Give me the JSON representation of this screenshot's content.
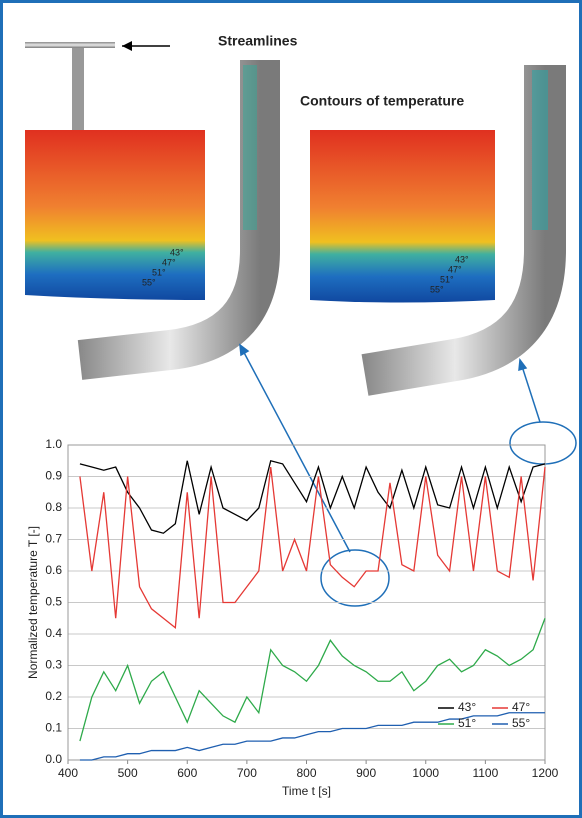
{
  "chart_data": {
    "type": "line",
    "x": [
      420,
      440,
      460,
      480,
      500,
      520,
      540,
      560,
      580,
      600,
      620,
      640,
      660,
      680,
      700,
      720,
      740,
      760,
      780,
      800,
      820,
      840,
      860,
      880,
      900,
      920,
      940,
      960,
      980,
      1000,
      1020,
      1040,
      1060,
      1080,
      1100,
      1120,
      1140,
      1160,
      1180,
      1200
    ],
    "series": [
      {
        "name": "43°",
        "color": "#000000",
        "values": [
          0.94,
          0.93,
          0.92,
          0.93,
          0.85,
          0.8,
          0.73,
          0.72,
          0.75,
          0.95,
          0.78,
          0.93,
          0.8,
          0.78,
          0.76,
          0.8,
          0.95,
          0.94,
          0.88,
          0.82,
          0.93,
          0.8,
          0.9,
          0.8,
          0.93,
          0.85,
          0.8,
          0.92,
          0.8,
          0.93,
          0.81,
          0.8,
          0.93,
          0.8,
          0.93,
          0.8,
          0.93,
          0.82,
          0.93,
          0.94
        ]
      },
      {
        "name": "47°",
        "color": "#e53935",
        "values": [
          0.9,
          0.6,
          0.85,
          0.45,
          0.9,
          0.55,
          0.48,
          0.45,
          0.42,
          0.85,
          0.45,
          0.9,
          0.5,
          0.5,
          0.55,
          0.6,
          0.93,
          0.6,
          0.7,
          0.6,
          0.9,
          0.62,
          0.58,
          0.55,
          0.6,
          0.6,
          0.88,
          0.62,
          0.6,
          0.9,
          0.65,
          0.6,
          0.9,
          0.6,
          0.9,
          0.6,
          0.58,
          0.9,
          0.57,
          0.93
        ]
      },
      {
        "name": "51°",
        "color": "#2eaa4a",
        "values": [
          0.06,
          0.2,
          0.28,
          0.22,
          0.3,
          0.18,
          0.25,
          0.28,
          0.2,
          0.12,
          0.22,
          0.18,
          0.14,
          0.12,
          0.2,
          0.15,
          0.35,
          0.3,
          0.28,
          0.25,
          0.3,
          0.38,
          0.33,
          0.3,
          0.28,
          0.25,
          0.25,
          0.28,
          0.22,
          0.25,
          0.3,
          0.32,
          0.28,
          0.3,
          0.35,
          0.33,
          0.3,
          0.32,
          0.35,
          0.45
        ]
      },
      {
        "name": "55°",
        "color": "#1f5fb0",
        "values": [
          0.0,
          0.0,
          0.01,
          0.01,
          0.02,
          0.02,
          0.03,
          0.03,
          0.03,
          0.04,
          0.03,
          0.04,
          0.05,
          0.05,
          0.06,
          0.06,
          0.06,
          0.07,
          0.07,
          0.08,
          0.09,
          0.09,
          0.1,
          0.1,
          0.1,
          0.11,
          0.11,
          0.11,
          0.12,
          0.12,
          0.12,
          0.13,
          0.13,
          0.14,
          0.14,
          0.14,
          0.15,
          0.15,
          0.15,
          0.15
        ]
      }
    ],
    "xlabel": "Time t [s]",
    "ylabel": "Normalized temperature T [-]",
    "xlim": [
      400,
      1200
    ],
    "ylim": [
      0,
      1
    ],
    "xticks": [
      400,
      500,
      600,
      700,
      800,
      900,
      1000,
      1100,
      1200
    ],
    "yticks": [
      {
        "value": 0,
        "label": "0.0"
      },
      0.1,
      0.2,
      0.3,
      0.4,
      0.5,
      0.6,
      0.7,
      0.8,
      0.9,
      {
        "value": 1,
        "label": "1.0"
      }
    ],
    "grid": true,
    "legend": "lower right"
  },
  "figure": {
    "streamlines_label": "Streamlines",
    "contours_label": "Contours of temperature",
    "angles_left": [
      "43°",
      "47°",
      "51°",
      "55°"
    ],
    "angles_right": [
      "43°",
      "47°",
      "51°",
      "55°"
    ]
  }
}
